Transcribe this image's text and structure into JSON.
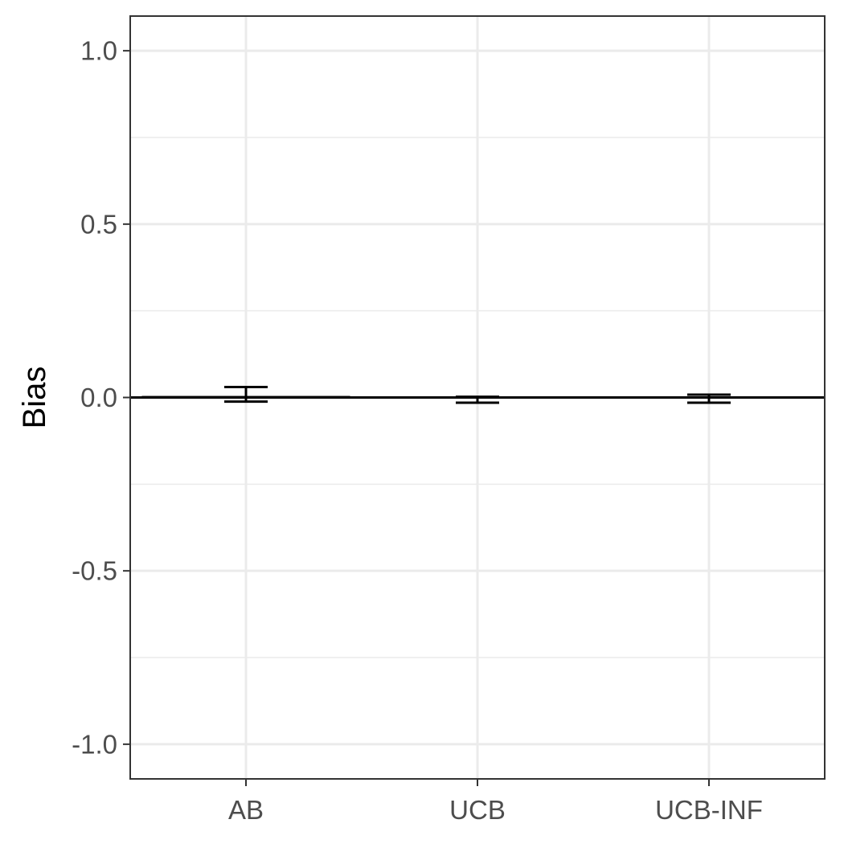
{
  "chart_data": {
    "type": "bar",
    "title": "",
    "xlabel": "",
    "ylabel": "Bias",
    "categories": [
      "AB",
      "UCB",
      "UCB-INF"
    ],
    "values": [
      0.005,
      -0.002,
      0.0
    ],
    "error_low": [
      -0.012,
      -0.015,
      -0.015
    ],
    "error_high": [
      0.03,
      0.002,
      0.008
    ],
    "ylim": [
      -1.1,
      1.1
    ],
    "yticks": [
      1.0,
      0.5,
      0.0,
      -0.5,
      -1.0
    ],
    "ytick_labels": [
      "1.0",
      "0.5",
      "0.0",
      "-0.5",
      "-1.0"
    ],
    "reference_line": 0.0,
    "grid": true,
    "legend": "none",
    "colors": {
      "bar_fill": "#595959",
      "errorbar": "#000000",
      "reference_line": "#000000",
      "grid": "#ebebeb",
      "panel_border": "#333333"
    }
  }
}
